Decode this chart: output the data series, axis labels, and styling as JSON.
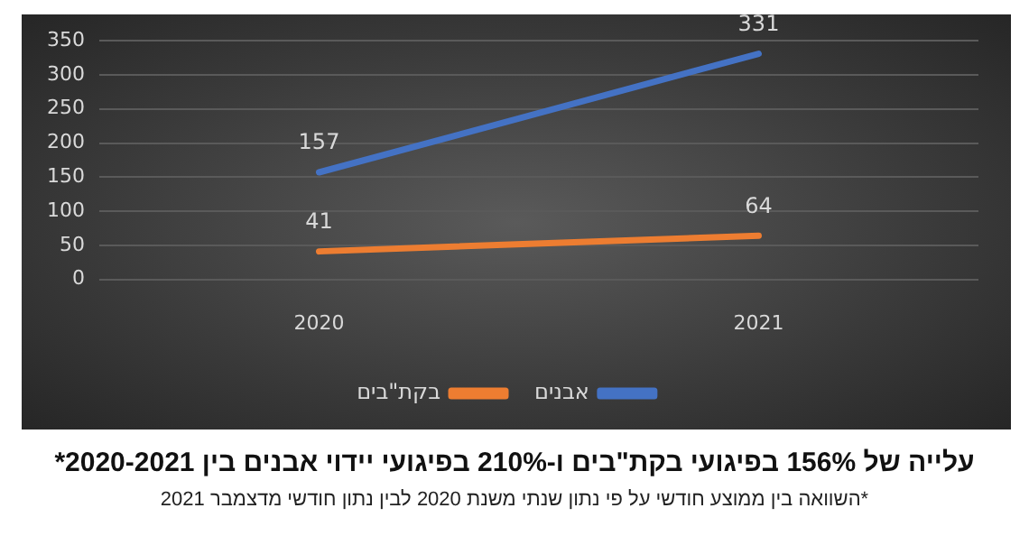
{
  "chart_data": {
    "type": "line",
    "title": "עלייה של 156% בפיגועי בקת\"בים ו-210% בפיגועי יידוי אבנים בין 2020-2021*",
    "annotations": [
      "*השוואה בין ממוצע חודשי על פי נתון שנתי משנת 2020 לבין נתון חודשי מדצמבר 2021"
    ],
    "categories": [
      "2020",
      "2021"
    ],
    "series": [
      {
        "name": "אבנים",
        "color": "#4472c4",
        "values": [
          157,
          331
        ]
      },
      {
        "name": "בקת\"בים",
        "color": "#ed7d31",
        "values": [
          41,
          64
        ]
      }
    ],
    "ylim": [
      0,
      350
    ],
    "yticks": [
      0,
      50,
      100,
      150,
      200,
      250,
      300,
      350
    ],
    "grid": "y",
    "legend": "bottom",
    "data_labels": true,
    "marker": "none"
  }
}
